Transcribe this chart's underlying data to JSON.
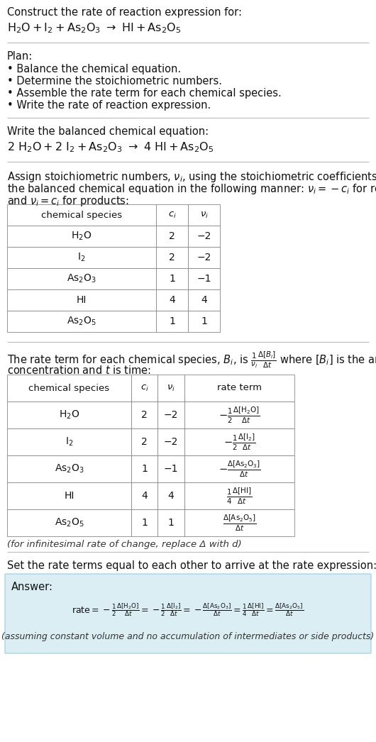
{
  "bg_color": "#ffffff",
  "text_color": "#111111",
  "gray_text": "#555555",
  "light_blue_bg": "#daeef3",
  "table_border": "#888888",
  "table_header_bg": "#ffffff",
  "table_row_bg": "#ffffff",
  "hline_color": "#bbbbbb",
  "title_line1": "Construct the rate of reaction expression for:",
  "plan_header": "Plan:",
  "plan_items": [
    "• Balance the chemical equation.",
    "• Determine the stoichiometric numbers.",
    "• Assemble the rate term for each chemical species.",
    "• Write the rate of reaction expression."
  ],
  "balanced_header": "Write the balanced chemical equation:",
  "table1_headers": [
    "chemical species",
    "$c_i$",
    "$\\nu_i$"
  ],
  "table1_rows": [
    [
      "$\\mathrm{H_2O}$",
      "2",
      "−2"
    ],
    [
      "$\\mathrm{I_2}$",
      "2",
      "−2"
    ],
    [
      "$\\mathrm{As_2O_3}$",
      "1",
      "−1"
    ],
    [
      "HI",
      "4",
      "4"
    ],
    [
      "$\\mathrm{As_2O_5}$",
      "1",
      "1"
    ]
  ],
  "table2_headers": [
    "chemical species",
    "$c_i$",
    "$\\nu_i$",
    "rate term"
  ],
  "table2_rows": [
    [
      "$\\mathrm{H_2O}$",
      "2",
      "−2",
      "$-\\frac{1}{2}\\frac{\\Delta[\\mathrm{H_2O}]}{\\Delta t}$"
    ],
    [
      "$\\mathrm{I_2}$",
      "2",
      "−2",
      "$-\\frac{1}{2}\\frac{\\Delta[\\mathrm{I_2}]}{\\Delta t}$"
    ],
    [
      "$\\mathrm{As_2O_3}$",
      "1",
      "−1",
      "$-\\frac{\\Delta[\\mathrm{As_2O_3}]}{\\Delta t}$"
    ],
    [
      "HI",
      "4",
      "4",
      "$\\frac{1}{4}\\frac{\\Delta[\\mathrm{HI}]}{\\Delta t}$"
    ],
    [
      "$\\mathrm{As_2O_5}$",
      "1",
      "1",
      "$\\frac{\\Delta[\\mathrm{As_2O_5}]}{\\Delta t}$"
    ]
  ],
  "infinitesimal_note": "(for infinitesimal rate of change, replace Δ with d)",
  "set_equal_text": "Set the rate terms equal to each other to arrive at the rate expression:",
  "answer_label": "Answer:",
  "answer_note": "(assuming constant volume and no accumulation of intermediates or side products)"
}
